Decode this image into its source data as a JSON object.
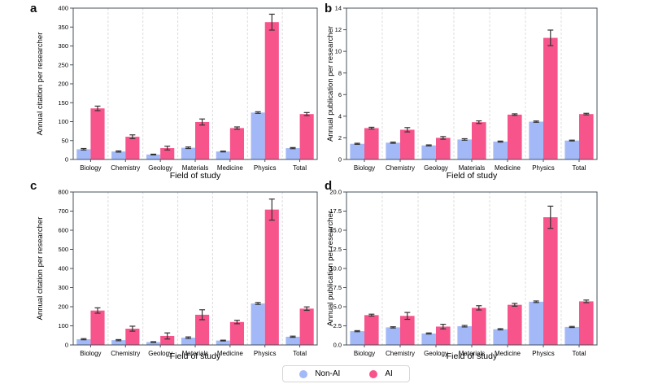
{
  "figure": {
    "panels": [
      {
        "label": "a"
      },
      {
        "label": "b"
      },
      {
        "label": "c"
      },
      {
        "label": "d"
      }
    ]
  },
  "legend": {
    "items": [
      {
        "label": "Non-AI",
        "color": "#a2b8f7"
      },
      {
        "label": "AI",
        "color": "#f7548c"
      }
    ]
  },
  "style_colors": {
    "non_ai": "#a2b8f7",
    "ai": "#f7548c",
    "error_bar": "#333333",
    "spine": "#46525a",
    "grid": "#dcdcdc"
  },
  "chart_data": [
    {
      "type": "bar",
      "panel": "a",
      "title": "",
      "xlabel": "Field of study",
      "ylabel": "Annual citation per researcher",
      "categories": [
        "Biology",
        "Chemistry",
        "Geology",
        "Materials",
        "Medicine",
        "Physics",
        "Total"
      ],
      "series": [
        {
          "name": "Non-AI",
          "color": "#a2b8f7",
          "values": [
            27,
            21,
            13,
            31,
            21,
            124,
            30
          ],
          "errors": [
            2,
            1.5,
            1,
            2,
            1,
            2,
            1.5
          ]
        },
        {
          "name": "AI",
          "color": "#f7548c",
          "values": [
            135,
            60,
            30,
            99,
            83,
            363,
            120
          ],
          "errors": [
            6,
            5,
            5,
            8,
            3,
            21,
            4
          ]
        }
      ],
      "ylim": [
        0,
        400
      ],
      "ytick_values": [
        0,
        50,
        100,
        150,
        200,
        250,
        300,
        350,
        400
      ],
      "ytick_labels": [
        "0",
        "50",
        "100",
        "150",
        "200",
        "250",
        "300",
        "350",
        "400"
      ],
      "grid": "vertical-dashed-between-categories",
      "error_bars": true,
      "legend_position": "shared-bottom-center"
    },
    {
      "type": "bar",
      "panel": "b",
      "title": "",
      "xlabel": "Field of study",
      "ylabel": "Annual publication per researcher",
      "categories": [
        "Biology",
        "Chemistry",
        "Geology",
        "Materials",
        "Medicine",
        "Physics",
        "Total"
      ],
      "series": [
        {
          "name": "Non-AI",
          "color": "#a2b8f7",
          "values": [
            1.45,
            1.55,
            1.3,
            1.85,
            1.65,
            3.5,
            1.75
          ],
          "errors": [
            0.05,
            0.05,
            0.05,
            0.07,
            0.05,
            0.06,
            0.04
          ]
        },
        {
          "name": "AI",
          "color": "#f7548c",
          "values": [
            2.9,
            2.75,
            2.0,
            3.45,
            4.15,
            11.25,
            4.2
          ],
          "errors": [
            0.08,
            0.2,
            0.12,
            0.12,
            0.07,
            0.72,
            0.07
          ]
        }
      ],
      "ylim": [
        0,
        14
      ],
      "ytick_values": [
        0,
        2,
        4,
        6,
        8,
        10,
        12,
        14
      ],
      "ytick_labels": [
        "0",
        "2",
        "4",
        "6",
        "8",
        "10",
        "12",
        "14"
      ],
      "grid": "vertical-dashed-between-categories",
      "error_bars": true,
      "legend_position": "shared-bottom-center"
    },
    {
      "type": "bar",
      "panel": "c",
      "title": "",
      "xlabel": "Field of study",
      "ylabel": "Annual citation per researcher",
      "categories": [
        "Biology",
        "Chemistry",
        "Geology",
        "Materials",
        "Medicine",
        "Physics",
        "Total"
      ],
      "series": [
        {
          "name": "Non-AI",
          "color": "#a2b8f7",
          "values": [
            30,
            25,
            15,
            38,
            23,
            217,
            43
          ],
          "errors": [
            3,
            3,
            2,
            4,
            2,
            5,
            3
          ]
        },
        {
          "name": "AI",
          "color": "#f7548c",
          "values": [
            180,
            85,
            47,
            158,
            120,
            708,
            190
          ],
          "errors": [
            14,
            13,
            16,
            26,
            9,
            55,
            9
          ]
        }
      ],
      "ylim": [
        0,
        800
      ],
      "ytick_values": [
        0,
        100,
        200,
        300,
        400,
        500,
        600,
        700,
        800
      ],
      "ytick_labels": [
        "0",
        "100",
        "200",
        "300",
        "400",
        "500",
        "600",
        "700",
        "800"
      ],
      "grid": "vertical-dashed-between-categories",
      "error_bars": true,
      "legend_position": "shared-bottom-center"
    },
    {
      "type": "bar",
      "panel": "d",
      "title": "",
      "xlabel": "Field of study",
      "ylabel": "Annual publication per researcher",
      "categories": [
        "Biology",
        "Chemistry",
        "Geology",
        "Materials",
        "Medicine",
        "Physics",
        "Total"
      ],
      "series": [
        {
          "name": "Non-AI",
          "color": "#a2b8f7",
          "values": [
            1.8,
            2.3,
            1.5,
            2.45,
            2.05,
            5.65,
            2.35
          ],
          "errors": [
            0.07,
            0.08,
            0.07,
            0.1,
            0.08,
            0.1,
            0.07
          ]
        },
        {
          "name": "AI",
          "color": "#f7548c",
          "values": [
            3.9,
            3.8,
            2.4,
            4.85,
            5.25,
            16.7,
            5.7
          ],
          "errors": [
            0.12,
            0.45,
            0.3,
            0.28,
            0.18,
            1.45,
            0.17
          ]
        }
      ],
      "ylim": [
        0,
        20
      ],
      "ytick_values": [
        0,
        2.5,
        5,
        7.5,
        10,
        12.5,
        15,
        17.5,
        20
      ],
      "ytick_labels": [
        "0.0",
        "2.5",
        "5.0",
        "7.5",
        "10.0",
        "12.5",
        "15.0",
        "17.5",
        "20.0"
      ],
      "grid": "vertical-dashed-between-categories",
      "error_bars": true,
      "legend_position": "shared-bottom-center"
    }
  ]
}
